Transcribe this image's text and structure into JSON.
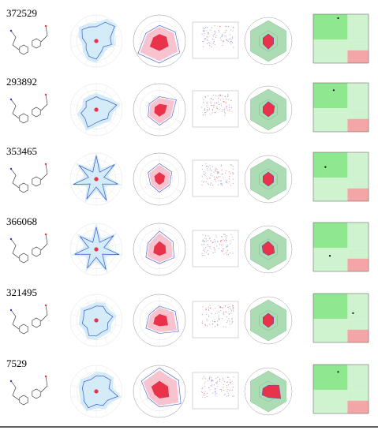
{
  "colors": {
    "radar1_fill": "#cfeaf7",
    "radar1_line": "#3a57c8",
    "radar2_fill": "#f7c3cf",
    "radar2_core": "#e8334a",
    "radar2_line": "#3a57c8",
    "scatter_red": "#d9534f",
    "scatter_blue": "#5a6fd1",
    "hex_fill": "#9ed6a8",
    "hex_inner": "#e8334a",
    "quad_green": "#8fe88f",
    "quad_lightgreen": "#cff3cf",
    "quad_red": "#f4a6a6"
  },
  "chart_data": [
    {
      "type": "table",
      "label": "372529",
      "id": "372529",
      "radar_a": [
        0.55,
        0.8,
        0.9,
        0.55,
        0.6,
        0.35,
        0.45,
        0.7,
        0.65,
        0.5,
        0.4,
        0.55,
        0.7,
        0.6
      ],
      "radar_b": [
        0.6,
        0.7,
        0.9,
        0.85,
        0.95,
        0.6
      ],
      "hex": [
        0.35,
        0.3,
        0.3,
        0.4,
        0.3,
        0.3
      ],
      "point": [
        0.45,
        0.92
      ]
    },
    {
      "type": "table",
      "label": "293892",
      "id": "293892",
      "radar_a": [
        0.5,
        0.45,
        0.55,
        0.8,
        0.5,
        0.55,
        0.45,
        0.5,
        0.75,
        0.55,
        0.6,
        0.4,
        0.5,
        0.45
      ],
      "radar_b": [
        0.5,
        0.75,
        0.55,
        0.6,
        0.5,
        0.45
      ],
      "hex": [
        0.4,
        0.35,
        0.3,
        0.35,
        0.3,
        0.3
      ],
      "point": [
        0.37,
        0.85
      ]
    },
    {
      "type": "table",
      "label": "353465",
      "id": "353465",
      "radar_a": [
        0.9,
        0.3,
        0.9,
        0.3,
        0.85,
        0.3,
        0.9,
        0.3,
        0.85,
        0.3,
        0.9,
        0.3,
        0.85,
        0.3
      ],
      "radar_b": [
        0.6,
        0.55,
        0.45,
        0.5,
        0.4,
        0.5
      ],
      "hex": [
        0.35,
        0.3,
        0.3,
        0.35,
        0.3,
        0.3
      ],
      "point": [
        0.22,
        0.7
      ]
    },
    {
      "type": "table",
      "label": "366068",
      "id": "366068",
      "radar_a": [
        0.85,
        0.3,
        0.85,
        0.3,
        0.9,
        0.3,
        0.85,
        0.3,
        0.8,
        0.3,
        0.85,
        0.3,
        0.8,
        0.3
      ],
      "radar_b": [
        0.7,
        0.6,
        0.65,
        0.55,
        0.6,
        0.5
      ],
      "hex": [
        0.4,
        0.3,
        0.35,
        0.3,
        0.3,
        0.35
      ],
      "point": [
        0.3,
        0.32
      ]
    },
    {
      "type": "table",
      "label": "321495",
      "id": "321495",
      "radar_a": [
        0.55,
        0.6,
        0.5,
        0.65,
        0.45,
        0.55,
        0.5,
        0.6,
        0.65,
        0.45,
        0.55,
        0.5,
        0.6,
        0.5
      ],
      "radar_b": [
        0.55,
        0.7,
        0.85,
        0.5,
        0.6,
        0.45
      ],
      "hex": [
        0.35,
        0.3,
        0.3,
        0.35,
        0.3,
        0.3
      ],
      "point": [
        0.72,
        0.6
      ]
    },
    {
      "type": "table",
      "label": "7529",
      "id": "7529",
      "radar_a": [
        0.6,
        0.65,
        0.7,
        0.5,
        0.85,
        0.55,
        0.6,
        0.5,
        0.7,
        0.6,
        0.5,
        0.55,
        0.6,
        0.5
      ],
      "radar_b": [
        0.9,
        0.85,
        0.95,
        0.6,
        0.5,
        0.8
      ],
      "hex": [
        0.3,
        0.6,
        0.7,
        0.3,
        0.35,
        0.3
      ],
      "point": [
        0.45,
        0.85
      ]
    }
  ]
}
